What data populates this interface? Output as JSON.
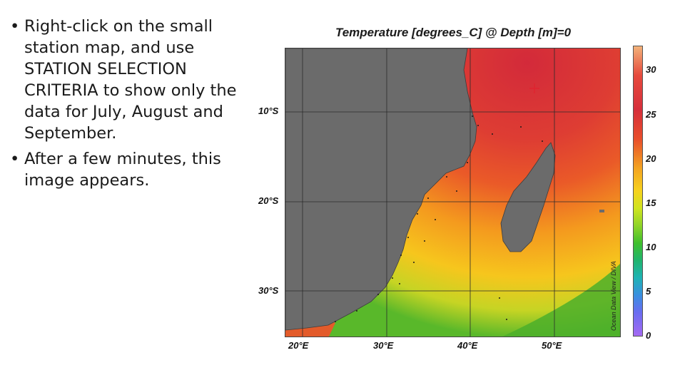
{
  "bullets": [
    {
      "text": "Right-click on the small station map, and use STATION SELECTION CRITERIA to show only the data for July, August and September."
    },
    {
      "text": "After a few minutes, this image appears."
    }
  ],
  "plot": {
    "title": "Temperature [degrees_C] @ Depth [m]=0",
    "lat_labels": [
      "10°S",
      "20°S",
      "30°S"
    ],
    "lon_labels": [
      "20°E",
      "30°E",
      "40°E",
      "50°E"
    ],
    "colorbar": {
      "ticks": [
        "30",
        "25",
        "20",
        "15",
        "10",
        "5",
        "0"
      ],
      "colors": {
        "top": "#d62f3b",
        "bottom": "#a46af2"
      }
    },
    "credit": "Ocean Data View / DIVA"
  },
  "colors": {
    "land": "#6b6b6b",
    "warm": "#d8323a",
    "hot_mid": "#ea5a28",
    "mid": "#f49a1e",
    "cool": "#f3d11f",
    "cold": "#8dc830",
    "coldest": "#3aa82a"
  }
}
